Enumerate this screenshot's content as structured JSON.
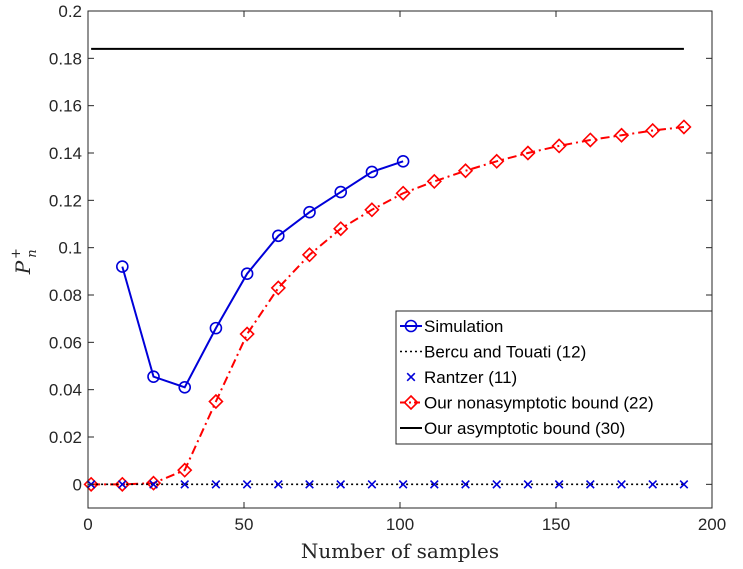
{
  "chart_data": {
    "type": "line",
    "title": "",
    "xlabel": "Number of samples",
    "ylabel": "P",
    "ylabel_super": "+",
    "ylabel_sub": "n",
    "xlim": [
      0,
      200
    ],
    "ylim": [
      -0.01,
      0.2
    ],
    "x_ticks": [
      0,
      50,
      100,
      150,
      200
    ],
    "y_ticks": [
      0,
      0.02,
      0.04,
      0.06,
      0.08,
      0.1,
      0.12,
      0.14,
      0.16,
      0.18,
      0.2
    ],
    "x_tick_labels": [
      "0",
      "50",
      "100",
      "150",
      "200"
    ],
    "y_tick_labels": [
      "0",
      "0.02",
      "0.04",
      "0.06",
      "0.08",
      "0.1",
      "0.12",
      "0.14",
      "0.16",
      "0.18",
      "0.2"
    ],
    "grid": false,
    "legend_position": "lower-right",
    "series": [
      {
        "name": "Simulation",
        "color": "#0000d9",
        "line": "solid",
        "marker": "circle",
        "x": [
          11,
          21,
          31,
          41,
          51,
          61,
          71,
          81,
          91,
          101
        ],
        "y": [
          0.092,
          0.0455,
          0.041,
          0.066,
          0.089,
          0.105,
          0.115,
          0.1235,
          0.132,
          0.1365
        ]
      },
      {
        "name": "Bercu and Touati (12)",
        "color": "#000000",
        "line": "dotted",
        "marker": "none",
        "x": [
          1,
          191
        ],
        "y": [
          0,
          0
        ]
      },
      {
        "name": "Rantzer (11)",
        "color": "#0000d9",
        "line": "none",
        "marker": "x",
        "x": [
          1,
          11,
          21,
          31,
          41,
          51,
          61,
          71,
          81,
          91,
          101,
          111,
          121,
          131,
          141,
          151,
          161,
          171,
          181,
          191
        ],
        "y": [
          0,
          0,
          0,
          0,
          0,
          0,
          0,
          0,
          0,
          0,
          0,
          0,
          0,
          0,
          0,
          0,
          0,
          0,
          0,
          0
        ]
      },
      {
        "name": "Our nonasymptotic bound (22)",
        "color": "#ff0000",
        "line": "dashdot",
        "marker": "diamond",
        "x": [
          1,
          11,
          21,
          31,
          41,
          51,
          61,
          71,
          81,
          91,
          101,
          111,
          121,
          131,
          141,
          151,
          161,
          171,
          181,
          191
        ],
        "y": [
          0,
          0,
          0.0005,
          0.006,
          0.035,
          0.0635,
          0.083,
          0.097,
          0.108,
          0.116,
          0.123,
          0.128,
          0.1325,
          0.1365,
          0.14,
          0.143,
          0.1455,
          0.1475,
          0.1495,
          0.151
        ]
      },
      {
        "name": "Our asymptotic bound (30)",
        "color": "#000000",
        "line": "solid",
        "marker": "none",
        "x": [
          1,
          191
        ],
        "y": [
          0.184,
          0.184
        ]
      }
    ]
  }
}
